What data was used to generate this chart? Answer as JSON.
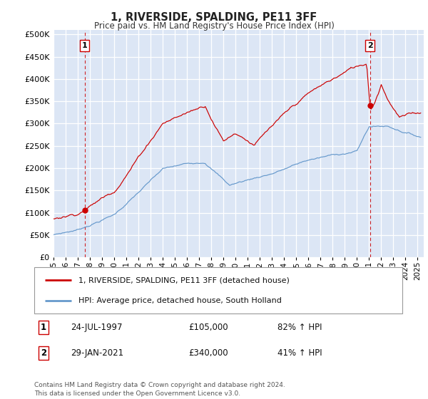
{
  "title": "1, RIVERSIDE, SPALDING, PE11 3FF",
  "subtitle": "Price paid vs. HM Land Registry's House Price Index (HPI)",
  "yticks": [
    0,
    50000,
    100000,
    150000,
    200000,
    250000,
    300000,
    350000,
    400000,
    450000,
    500000
  ],
  "xlim_start": 1995.0,
  "xlim_end": 2025.5,
  "ylim": [
    0,
    510000
  ],
  "sale1_date": 1997.56,
  "sale1_price": 105000,
  "sale1_label": "1",
  "sale2_date": 2021.08,
  "sale2_price": 340000,
  "sale2_label": "2",
  "red_color": "#cc0000",
  "blue_color": "#6699cc",
  "bg_color": "#dce6f5",
  "grid_color": "#ffffff",
  "legend1": "1, RIVERSIDE, SPALDING, PE11 3FF (detached house)",
  "legend2": "HPI: Average price, detached house, South Holland",
  "annotation1_date": "24-JUL-1997",
  "annotation1_price": "£105,000",
  "annotation1_hpi": "82% ↑ HPI",
  "annotation2_date": "29-JAN-2021",
  "annotation2_price": "£340,000",
  "annotation2_hpi": "41% ↑ HPI",
  "footer": "Contains HM Land Registry data © Crown copyright and database right 2024.\nThis data is licensed under the Open Government Licence v3.0."
}
